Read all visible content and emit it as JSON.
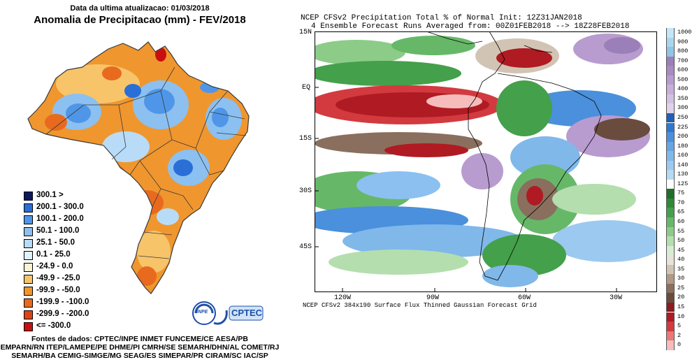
{
  "left_panel": {
    "update_text": "Data da ultima atualizacao: 01/03/2018",
    "title": "Anomalia de Precipitacao (mm) - FEV/2018",
    "legend": [
      {
        "label": "300.1 >",
        "color": "#0a1a5e"
      },
      {
        "label": "200.1 - 300.0",
        "color": "#2a6fd6"
      },
      {
        "label": "100.1 - 200.0",
        "color": "#4f96e8"
      },
      {
        "label": "50.1 - 100.0",
        "color": "#8cc0f0"
      },
      {
        "label": "25.1 - 50.0",
        "color": "#b8dcf8"
      },
      {
        "label": "0.1 - 25.0",
        "color": "#e0f2fc"
      },
      {
        "label": "-24.9 - 0.0",
        "color": "#fbf3d2"
      },
      {
        "label": "-49.9 - -25.0",
        "color": "#f7c46a"
      },
      {
        "label": "-99.9 - -50.0",
        "color": "#f0962e"
      },
      {
        "label": "-199.9 - -100.0",
        "color": "#e86a1e"
      },
      {
        "label": "-299.9 - -200.0",
        "color": "#dc4418"
      },
      {
        "label": "<= -300.0",
        "color": "#c81010"
      }
    ],
    "logo": {
      "inpe": "INPE",
      "cptec": "CPTEC"
    },
    "sources_lines": [
      "Fontes de dados: CPTEC/INPE INMET FUNCEME/CE AESA/PB",
      "EMPARN/RN ITEP/LAMEPE/PE DHME/PI CMRH/SE SEMARH/DHN/AL COMET/RJ",
      "SEMARH/BA CEMIG-SIMGE/MG SEAG/ES SIMEPAR/PR CIRAM/SC IAC/SP"
    ]
  },
  "right_panel": {
    "title_line1": "NCEP CFSv2 Precipitation Total % of Normal Init: 12Z31JAN2018",
    "title_line2": "4 Ensemble Forecast Runs Averaged from: 00Z01FEB2018 --> 18Z28FEB2018",
    "lat_labels": [
      "15N",
      "EQ",
      "15S",
      "30S",
      "45S"
    ],
    "lon_labels": [
      "120W",
      "90W",
      "60W",
      "30W"
    ],
    "footer": "NCEP CFSv2 384x190 Surface Flux Thinned Gaussian Forecast Grid",
    "colorbar": [
      {
        "label": "1000",
        "color": "#c5e6f5"
      },
      {
        "label": "900",
        "color": "#a9d6ee"
      },
      {
        "label": "800",
        "color": "#8fc5e6"
      },
      {
        "label": "700",
        "color": "#9a7fb8"
      },
      {
        "label": "600",
        "color": "#a98ac4"
      },
      {
        "label": "500",
        "color": "#b89ccf"
      },
      {
        "label": "400",
        "color": "#c7afd9"
      },
      {
        "label": "350",
        "color": "#d4c0e2"
      },
      {
        "label": "300",
        "color": "#e0d2ea"
      },
      {
        "label": "250",
        "color": "#1f5fb8"
      },
      {
        "label": "225",
        "color": "#2f78d0"
      },
      {
        "label": "200",
        "color": "#4a90dc"
      },
      {
        "label": "180",
        "color": "#65a5e4"
      },
      {
        "label": "160",
        "color": "#80b8ea"
      },
      {
        "label": "140",
        "color": "#9cc9ef"
      },
      {
        "label": "130",
        "color": "#b7d9f4"
      },
      {
        "label": "125",
        "color": "#ffffff"
      },
      {
        "label": "75",
        "color": "#1f6e2a"
      },
      {
        "label": "70",
        "color": "#2f8a36"
      },
      {
        "label": "65",
        "color": "#44a04a"
      },
      {
        "label": "60",
        "color": "#66b868"
      },
      {
        "label": "55",
        "color": "#8ccc88"
      },
      {
        "label": "50",
        "color": "#b4deae"
      },
      {
        "label": "45",
        "color": "#d8ecd2"
      },
      {
        "label": "40",
        "color": "#e8e2d8"
      },
      {
        "label": "35",
        "color": "#d2c4b4"
      },
      {
        "label": "30",
        "color": "#b09a86"
      },
      {
        "label": "25",
        "color": "#8a6f5e"
      },
      {
        "label": "20",
        "color": "#6a4c3e"
      },
      {
        "label": "15",
        "color": "#8a1c22"
      },
      {
        "label": "10",
        "color": "#b01a22"
      },
      {
        "label": "5",
        "color": "#d23a40"
      },
      {
        "label": "2",
        "color": "#e8787a"
      },
      {
        "label": "0",
        "color": "#f6bcbc"
      }
    ]
  }
}
